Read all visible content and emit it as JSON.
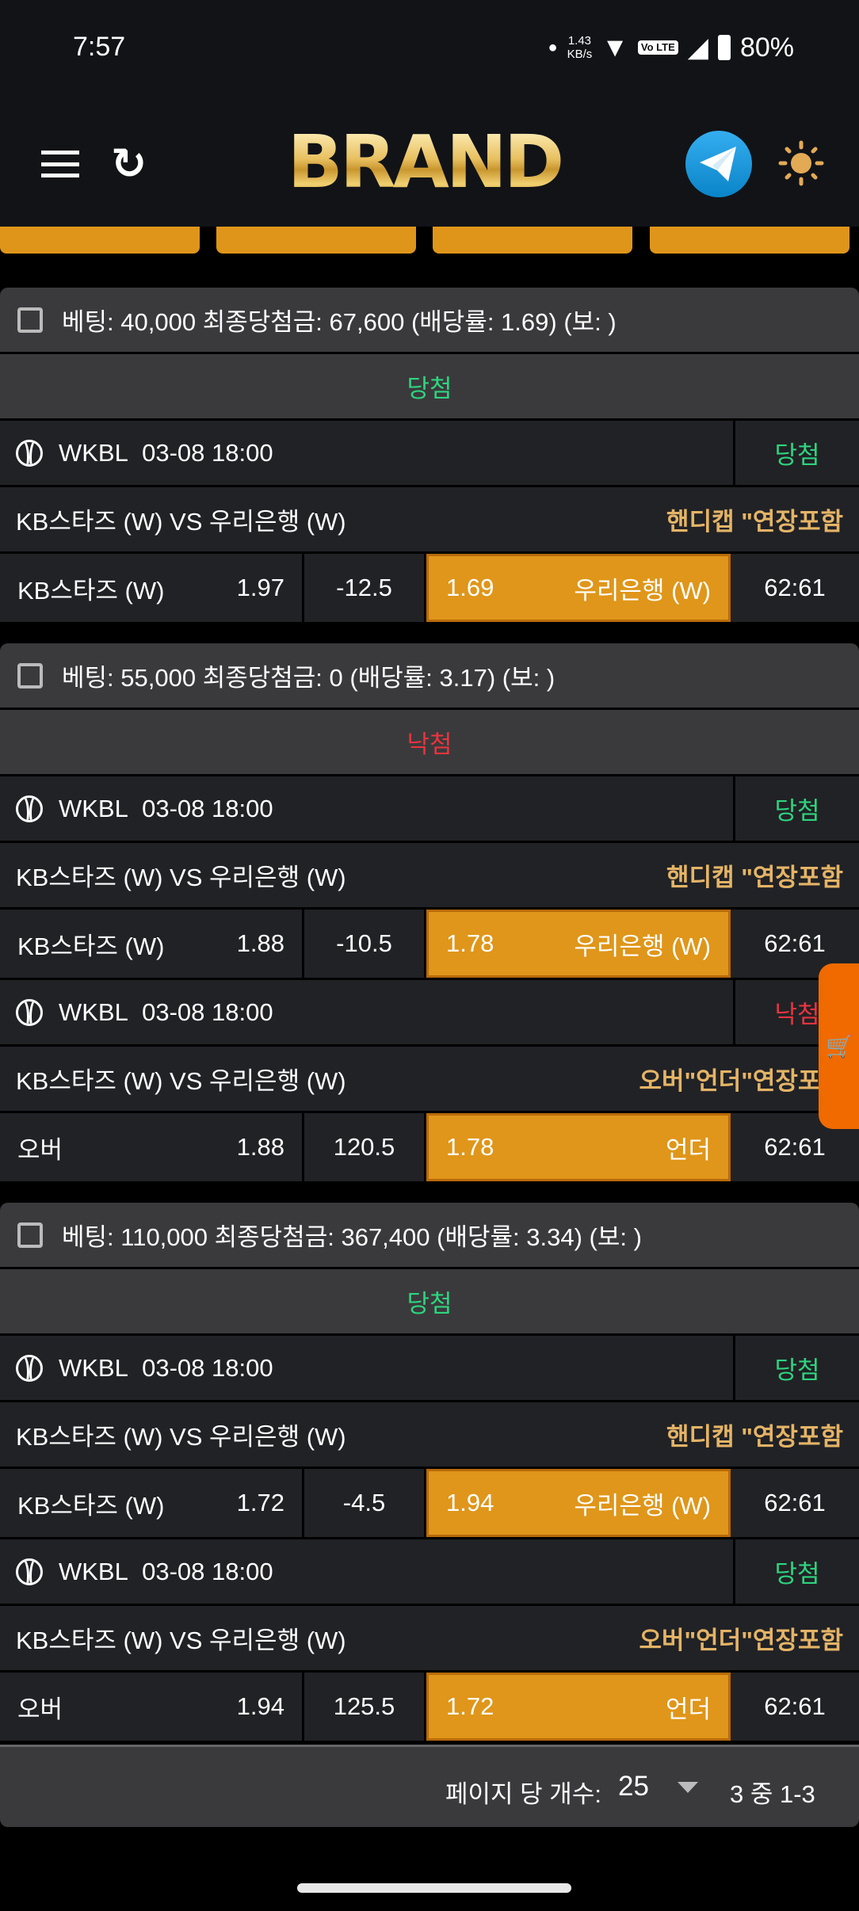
{
  "status_bar": {
    "time": "7:57",
    "net_speed": "1.43",
    "net_unit": "KB/s",
    "volte": "Vo LTE",
    "battery": "80%"
  },
  "header": {
    "logo": "BRAND",
    "icons": [
      "menu-icon",
      "refresh-icon",
      "telegram-icon",
      "sun-icon"
    ]
  },
  "colors": {
    "accent": "#df961a",
    "win": "#2ed47e",
    "lose": "#e8343e",
    "market": "#e4b466",
    "cart": "#f06a00"
  },
  "bets": [
    {
      "summary": "베팅: 40,000 최종당첨금: 67,600 (배당률: 1.69) (보: )",
      "status": "당첨",
      "status_type": "win",
      "legs": [
        {
          "league": "WKBL",
          "datetime": "03-08 18:00",
          "result": "당첨",
          "result_type": "win",
          "match": "KB스타즈 (W) VS 우리은행 (W)",
          "market": "핸디캡 \"연장포함",
          "home": "KB스타즈 (W)",
          "home_odds": "1.97",
          "line": "-12.5",
          "away_odds": "1.69",
          "away": "우리은행 (W)",
          "score": "62:61"
        }
      ]
    },
    {
      "summary": "베팅: 55,000 최종당첨금: 0 (배당률: 3.17) (보: )",
      "status": "낙첨",
      "status_type": "lose",
      "legs": [
        {
          "league": "WKBL",
          "datetime": "03-08 18:00",
          "result": "당첨",
          "result_type": "win",
          "match": "KB스타즈 (W) VS 우리은행 (W)",
          "market": "핸디캡 \"연장포함",
          "home": "KB스타즈 (W)",
          "home_odds": "1.88",
          "line": "-10.5",
          "away_odds": "1.78",
          "away": "우리은행 (W)",
          "score": "62:61"
        },
        {
          "league": "WKBL",
          "datetime": "03-08 18:00",
          "result": "낙첨",
          "result_type": "lose",
          "match": "KB스타즈 (W) VS 우리은행 (W)",
          "market": "오버\"언더\"연장포함",
          "home": "오버",
          "home_odds": "1.88",
          "line": "120.5",
          "away_odds": "1.78",
          "away": "언더",
          "score": "62:61"
        }
      ]
    },
    {
      "summary": "베팅: 110,000 최종당첨금: 367,400 (배당률: 3.34) (보: )",
      "status": "당첨",
      "status_type": "win",
      "legs": [
        {
          "league": "WKBL",
          "datetime": "03-08 18:00",
          "result": "당첨",
          "result_type": "win",
          "match": "KB스타즈 (W) VS 우리은행 (W)",
          "market": "핸디캡 \"연장포함",
          "home": "KB스타즈 (W)",
          "home_odds": "1.72",
          "line": "-4.5",
          "away_odds": "1.94",
          "away": "우리은행 (W)",
          "score": "62:61"
        },
        {
          "league": "WKBL",
          "datetime": "03-08 18:00",
          "result": "당첨",
          "result_type": "win",
          "match": "KB스타즈 (W) VS 우리은행 (W)",
          "market": "오버\"언더\"연장포함",
          "home": "오버",
          "home_odds": "1.94",
          "line": "125.5",
          "away_odds": "1.72",
          "away": "언더",
          "score": "62:61"
        }
      ]
    }
  ],
  "pagination": {
    "per_page_label": "페이지 당 개수:",
    "per_page": "25",
    "range": "3 중 1-3"
  }
}
